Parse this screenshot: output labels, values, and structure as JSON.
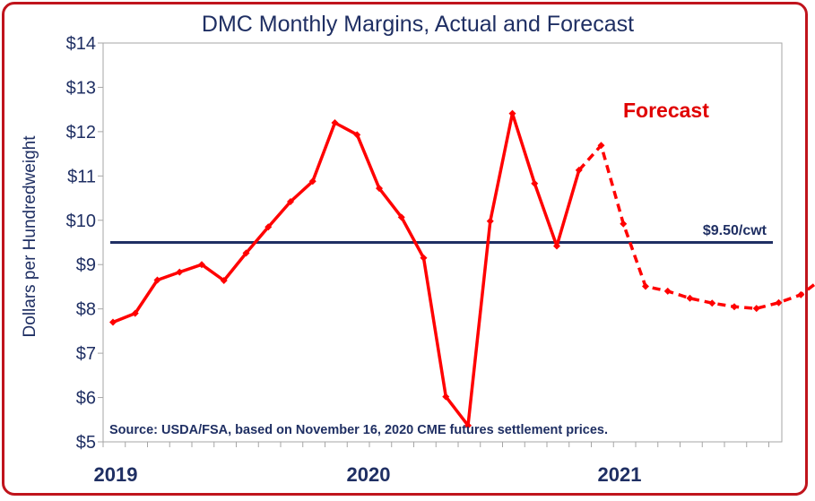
{
  "chart_data": {
    "type": "line",
    "title": "DMC Monthly Margins, Actual and Forecast",
    "ylabel": "Dollars per Hundredweight",
    "ylim": [
      5,
      14
    ],
    "y_ticks": [
      "$5",
      "$6",
      "$7",
      "$8",
      "$9",
      "$10",
      "$11",
      "$12",
      "$13",
      "$14"
    ],
    "year_labels": [
      "2019",
      "2020",
      "2021"
    ],
    "grid": false,
    "reference_line": {
      "value": 9.5,
      "label": "$9.50/cwt",
      "color": "#1f2f63"
    },
    "forecast_label": "Forecast",
    "source": "Source:  USDA/FSA, based on November 16, 2020 CME futures settlement prices.",
    "series": [
      {
        "style": "solid",
        "color": "#ff0000",
        "x": [
          "2019-01",
          "2019-02",
          "2019-03",
          "2019-04",
          "2019-05",
          "2019-06",
          "2019-07",
          "2019-08",
          "2019-09",
          "2019-10",
          "2019-11",
          "2019-12",
          "2020-01",
          "2020-02",
          "2020-03",
          "2020-04",
          "2020-05",
          "2020-06",
          "2020-07",
          "2020-08",
          "2020-09",
          "2020-10"
        ],
        "values": [
          7.7,
          7.9,
          8.65,
          8.83,
          9.0,
          8.64,
          9.26,
          9.85,
          10.42,
          10.88,
          12.2,
          11.93,
          10.72,
          10.07,
          9.15,
          6.02,
          5.37,
          9.98,
          12.41,
          10.83,
          9.42,
          11.13
        ]
      },
      {
        "style": "dashed",
        "color": "#ff0000",
        "x": [
          "2020-10",
          "2020-11",
          "2020-12",
          "2021-01",
          "2021-02",
          "2021-03",
          "2021-04",
          "2021-05",
          "2021-06",
          "2021-07",
          "2021-08",
          "2021-09"
        ],
        "values": [
          11.13,
          11.69,
          9.92,
          8.51,
          8.4,
          8.24,
          8.13,
          8.05,
          8.01,
          8.14,
          8.32,
          8.7
        ]
      }
    ]
  }
}
